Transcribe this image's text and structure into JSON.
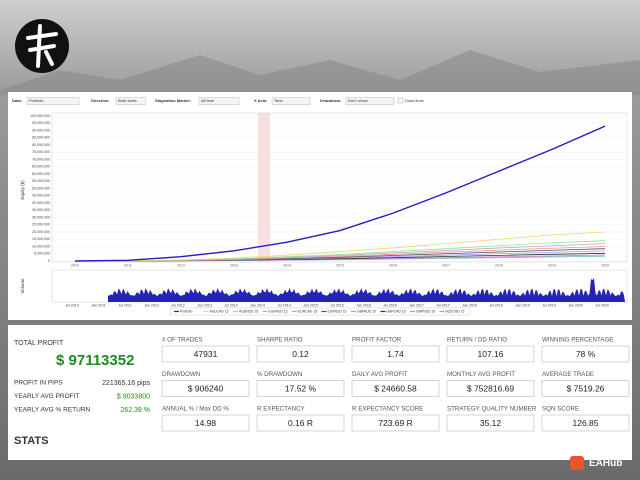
{
  "toolbar": [
    {
      "label": "Data:",
      "value": "Portfolio"
    },
    {
      "label": "Direction:",
      "value": "Both sides"
    },
    {
      "label": "Stagnation Marker:",
      "value": "All time"
    },
    {
      "label": "X Axis:",
      "value": "Time"
    },
    {
      "label": "Drawdown:",
      "value": "Don't show"
    }
  ],
  "draw_lines": "Draw lines",
  "chart_data": {
    "type": "line",
    "y_label": "Equity ($)",
    "categories": [
      "2010",
      "2011",
      "2012",
      "2013",
      "2014",
      "2015",
      "2016",
      "2017",
      "2018",
      "2019",
      "2020"
    ],
    "ylim": [
      0,
      100000000
    ],
    "yticks": [
      0,
      {
        "value": 5000000,
        "label": "5,000,000"
      },
      {
        "value": 10000000,
        "label": "10,000,000"
      },
      {
        "value": 15000000,
        "label": "15,000,000"
      },
      {
        "value": 20000000,
        "label": "20,000,000"
      },
      {
        "value": 25000000,
        "label": "25,000,000"
      },
      {
        "value": 30000000,
        "label": "30,000,000"
      },
      {
        "value": 35000000,
        "label": "35,000,000"
      },
      {
        "value": 40000000,
        "label": "40,000,000"
      },
      {
        "value": 45000000,
        "label": "45,000,000"
      },
      {
        "value": 50000000,
        "label": "50,000,000"
      },
      {
        "value": 55000000,
        "label": "55,000,000"
      },
      {
        "value": 60000000,
        "label": "60,000,000"
      },
      {
        "value": 65000000,
        "label": "65,000,000"
      },
      {
        "value": 70000000,
        "label": "70,000,000"
      },
      {
        "value": 75000000,
        "label": "75,000,000"
      },
      {
        "value": 80000000,
        "label": "80,000,000"
      },
      {
        "value": 85000000,
        "label": "85,000,000"
      },
      {
        "value": 90000000,
        "label": "90,000,000"
      },
      {
        "value": 95000000,
        "label": "95,000,000"
      },
      {
        "value": 100000000,
        "label": "100,000,000"
      }
    ],
    "grid": true,
    "series": [
      {
        "name": "Portfolio",
        "color": "#1f1fc4",
        "values": [
          0,
          500000,
          3000000,
          7000000,
          13000000,
          21000000,
          33000000,
          47000000,
          62000000,
          77000000,
          93000000
        ]
      },
      {
        "name": "AUDCAD 15",
        "color": "#f2d36b",
        "values": [
          0,
          200000,
          800000,
          2000000,
          4000000,
          6500000,
          9000000,
          12000000,
          15000000,
          18000000,
          20000000
        ]
      },
      {
        "name": "AUDNZD 15",
        "color": "#8fe0a0",
        "values": [
          0,
          150000,
          600000,
          1500000,
          3000000,
          4500000,
          6500000,
          8500000,
          10500000,
          12500000,
          14000000
        ]
      },
      {
        "name": "EURAUD 15",
        "color": "#b0b0b0",
        "values": [
          0,
          100000,
          500000,
          1200000,
          2500000,
          3800000,
          5500000,
          7200000,
          9000000,
          10500000,
          12000000
        ]
      },
      {
        "name": "EURCAD 15",
        "color": "#ff8f8f",
        "values": [
          0,
          100000,
          400000,
          1000000,
          2000000,
          3200000,
          4600000,
          6000000,
          7500000,
          8800000,
          10000000
        ]
      },
      {
        "name": "EURNZD 15",
        "color": "#505050",
        "values": [
          0,
          80000,
          300000,
          800000,
          1600000,
          2600000,
          3800000,
          5000000,
          6200000,
          7400000,
          8500000
        ]
      },
      {
        "name": "GBPAUD 15",
        "color": "#9f9fff",
        "values": [
          0,
          60000,
          250000,
          700000,
          1300000,
          2100000,
          3000000,
          4000000,
          5000000,
          6000000,
          7000000
        ]
      },
      {
        "name": "GBPCAD 15",
        "color": "#2f2f2f",
        "values": [
          0,
          50000,
          200000,
          500000,
          1000000,
          1600000,
          2300000,
          3100000,
          3900000,
          4600000,
          5300000
        ]
      },
      {
        "name": "GBPNZD 15",
        "color": "#d080d0",
        "values": [
          0,
          40000,
          150000,
          400000,
          800000,
          1200000,
          1700000,
          2300000,
          2900000,
          3500000,
          4100000
        ]
      },
      {
        "name": "NZDCAD 15",
        "color": "#70c0c0",
        "values": [
          0,
          30000,
          100000,
          300000,
          600000,
          900000,
          1300000,
          1800000,
          2300000,
          2800000,
          3300000
        ]
      }
    ]
  },
  "volume": {
    "label": "Volume",
    "x_labels": [
      "Jul 2010",
      "Jan 2011",
      "Jul 2011",
      "Jan 2012",
      "Jul 2012",
      "Jan 2013",
      "Jul 2013",
      "Jan 2014",
      "Jul 2014",
      "Jan 2015",
      "Jul 2015",
      "Jan 2016",
      "Jul 2016",
      "Jan 2017",
      "Jul 2017",
      "Jan 2018",
      "Jul 2018",
      "Jan 2019",
      "Jul 2019",
      "Jan 2020",
      "Jul 2020"
    ]
  },
  "stats": {
    "total_profit_label": "TOTAL PROFIT",
    "total_profit": "$ 97113352",
    "rows": [
      {
        "label": "PROFIT IN PIPS",
        "value": "221365.16 pips"
      },
      {
        "label": "YEARLY AVG PROFIT",
        "value": "$ 9033800"
      },
      {
        "label": "YEARLY AVG % RETURN",
        "value": "262.39 %"
      }
    ],
    "heading": "STATS",
    "cards": [
      [
        {
          "label": "# OF TRADES",
          "value": "47931"
        },
        {
          "label": "SHARPE RATIO",
          "value": "0.12"
        },
        {
          "label": "PROFIT FACTOR",
          "value": "1.74"
        },
        {
          "label": "RETURN / DD RATIO",
          "value": "107.16"
        },
        {
          "label": "WINNING PERCENTAGE",
          "value": "78 %"
        }
      ],
      [
        {
          "label": "DRAWDOWN",
          "value": "$ 906240"
        },
        {
          "label": "% DRAWDOWN",
          "value": "17.52 %"
        },
        {
          "label": "DAILY AVG PROFIT",
          "value": "$ 24660.58"
        },
        {
          "label": "MONTHLY AVG PROFIT",
          "value": "$ 752816.69"
        },
        {
          "label": "AVERAGE TRADE",
          "value": "$ 7519.26"
        }
      ],
      [
        {
          "label": "ANNUAL % / Max DD %",
          "value": "14.98"
        },
        {
          "label": "R EXPECTANCY",
          "value": "0.16 R"
        },
        {
          "label": "R EXPECTANCY SCORE",
          "value": "723.69 R"
        },
        {
          "label": "STRATEGY QUALITY NUMBER",
          "value": "35.12"
        },
        {
          "label": "SQN SCORE",
          "value": "126.85"
        }
      ]
    ]
  },
  "watermark": "EAHub"
}
